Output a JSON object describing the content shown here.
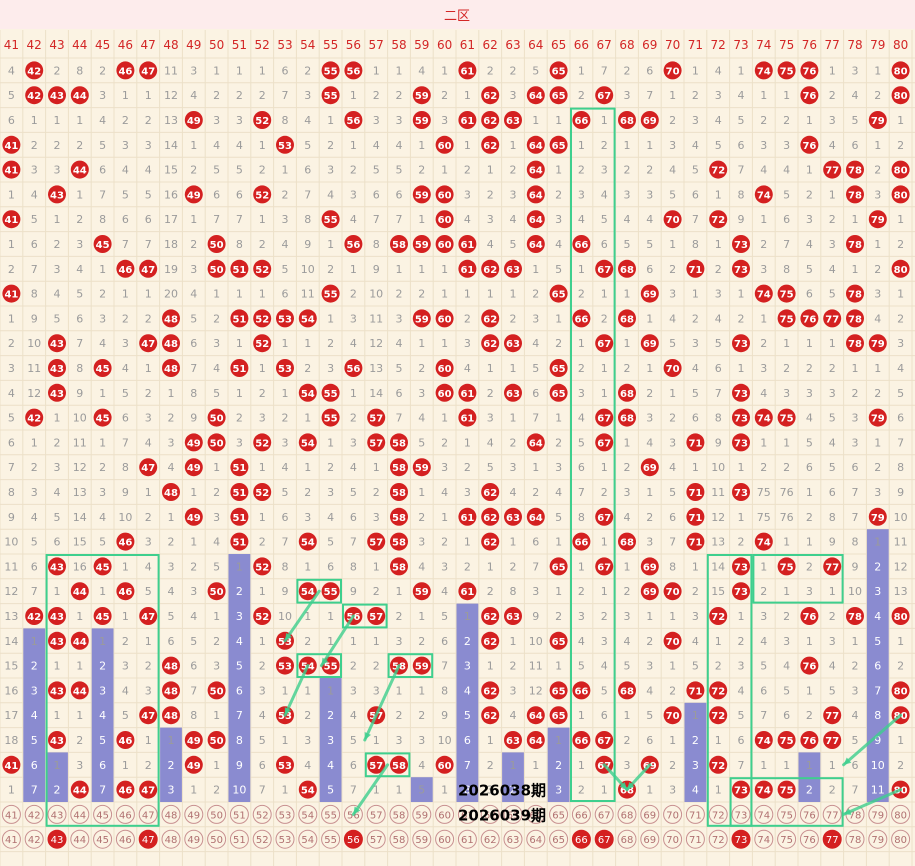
{
  "section_title": "二区",
  "colors": {
    "background": "#fbf3e3",
    "header_bg": "#fdecec",
    "title_text": "#d32626",
    "ball_red": "#d42020",
    "ball_text": "#ffffff",
    "miss_text": "#9b9b9b",
    "bar_fill": "#8a8bd0",
    "bar_text": "#ffffff",
    "connector": "#3ecf8e",
    "grid": "#ece0c8"
  },
  "chart_data": {
    "type": "table",
    "columns": [
      41,
      42,
      43,
      44,
      45,
      46,
      47,
      48,
      49,
      50,
      51,
      52,
      53,
      54,
      55,
      56,
      57,
      58,
      59,
      60,
      61,
      62,
      63,
      64,
      65,
      66,
      67,
      68,
      69,
      70,
      71,
      72,
      73,
      74,
      75,
      76,
      77,
      78,
      79,
      80
    ],
    "rows": [
      [
        4,
        42,
        2,
        8,
        2,
        46,
        47,
        11,
        3,
        1,
        1,
        1,
        6,
        2,
        55,
        56,
        1,
        1,
        4,
        1,
        61,
        2,
        2,
        5,
        65,
        1,
        7,
        2,
        6,
        70,
        1,
        4,
        1,
        74,
        75,
        76,
        1,
        3,
        1,
        80
      ],
      [
        5,
        42,
        43,
        44,
        3,
        1,
        1,
        12,
        4,
        2,
        2,
        2,
        7,
        3,
        55,
        1,
        2,
        2,
        59,
        2,
        1,
        62,
        3,
        64,
        65,
        2,
        67,
        3,
        7,
        1,
        2,
        3,
        4,
        1,
        1,
        76,
        2,
        4,
        2,
        80
      ],
      [
        6,
        1,
        1,
        1,
        4,
        2,
        2,
        13,
        49,
        3,
        3,
        52,
        8,
        4,
        1,
        56,
        3,
        3,
        59,
        3,
        61,
        62,
        63,
        1,
        1,
        66,
        1,
        68,
        69,
        2,
        3,
        4,
        5,
        2,
        2,
        1,
        3,
        5,
        79,
        1
      ],
      [
        41,
        2,
        2,
        2,
        5,
        3,
        3,
        14,
        1,
        4,
        4,
        1,
        53,
        5,
        2,
        1,
        4,
        4,
        1,
        60,
        1,
        62,
        1,
        64,
        65,
        1,
        2,
        1,
        1,
        3,
        4,
        5,
        6,
        3,
        3,
        76,
        4,
        6,
        1,
        2
      ],
      [
        41,
        3,
        3,
        44,
        6,
        4,
        4,
        15,
        2,
        5,
        5,
        2,
        1,
        6,
        3,
        2,
        5,
        5,
        2,
        1,
        2,
        1,
        2,
        64,
        1,
        2,
        3,
        2,
        2,
        4,
        5,
        72,
        7,
        4,
        4,
        1,
        77,
        78,
        2,
        80
      ],
      [
        1,
        4,
        43,
        1,
        7,
        5,
        5,
        16,
        49,
        6,
        6,
        52,
        2,
        7,
        4,
        3,
        6,
        6,
        59,
        60,
        3,
        2,
        3,
        64,
        2,
        3,
        4,
        3,
        3,
        5,
        6,
        1,
        8,
        74,
        5,
        2,
        1,
        78,
        3,
        80
      ],
      [
        41,
        5,
        1,
        2,
        8,
        6,
        6,
        17,
        1,
        7,
        7,
        1,
        3,
        8,
        55,
        4,
        7,
        7,
        1,
        60,
        4,
        3,
        4,
        64,
        3,
        4,
        5,
        4,
        4,
        70,
        7,
        72,
        9,
        1,
        6,
        3,
        2,
        1,
        79,
        1
      ],
      [
        1,
        6,
        2,
        3,
        45,
        7,
        7,
        18,
        2,
        50,
        8,
        2,
        4,
        9,
        1,
        56,
        8,
        58,
        59,
        60,
        61,
        4,
        5,
        64,
        4,
        66,
        6,
        5,
        5,
        1,
        8,
        1,
        73,
        2,
        7,
        4,
        3,
        78,
        1,
        2
      ],
      [
        2,
        7,
        3,
        4,
        1,
        46,
        47,
        19,
        3,
        50,
        51,
        52,
        5,
        10,
        2,
        1,
        9,
        1,
        1,
        1,
        61,
        62,
        63,
        1,
        5,
        1,
        67,
        68,
        6,
        2,
        71,
        2,
        73,
        3,
        8,
        5,
        4,
        1,
        2,
        80
      ],
      [
        41,
        8,
        4,
        5,
        2,
        1,
        1,
        20,
        4,
        1,
        1,
        1,
        6,
        11,
        55,
        2,
        10,
        2,
        2,
        1,
        1,
        1,
        1,
        2,
        65,
        2,
        1,
        1,
        69,
        3,
        1,
        3,
        1,
        74,
        75,
        6,
        5,
        78,
        3,
        1
      ],
      [
        1,
        9,
        5,
        6,
        3,
        2,
        2,
        48,
        5,
        2,
        51,
        52,
        53,
        54,
        1,
        3,
        11,
        3,
        59,
        60,
        2,
        62,
        2,
        3,
        1,
        66,
        2,
        68,
        1,
        4,
        2,
        4,
        2,
        1,
        75,
        76,
        77,
        78,
        4,
        2
      ],
      [
        2,
        10,
        43,
        7,
        4,
        3,
        47,
        48,
        6,
        3,
        1,
        52,
        1,
        1,
        2,
        4,
        12,
        4,
        1,
        1,
        3,
        62,
        63,
        4,
        2,
        1,
        67,
        1,
        69,
        5,
        3,
        5,
        73,
        2,
        1,
        1,
        1,
        78,
        79,
        3
      ],
      [
        3,
        11,
        43,
        8,
        45,
        4,
        1,
        48,
        7,
        4,
        51,
        1,
        53,
        2,
        3,
        56,
        13,
        5,
        2,
        60,
        4,
        1,
        1,
        5,
        65,
        2,
        1,
        2,
        1,
        70,
        4,
        6,
        1,
        3,
        2,
        2,
        2,
        1,
        1,
        4
      ],
      [
        4,
        12,
        43,
        9,
        1,
        5,
        2,
        1,
        8,
        5,
        1,
        2,
        1,
        54,
        55,
        1,
        14,
        6,
        3,
        60,
        61,
        2,
        63,
        6,
        65,
        3,
        1,
        68,
        2,
        1,
        5,
        7,
        73,
        4,
        3,
        3,
        3,
        2,
        2,
        5
      ],
      [
        5,
        42,
        1,
        10,
        45,
        6,
        3,
        2,
        9,
        50,
        2,
        3,
        2,
        1,
        55,
        2,
        57,
        7,
        4,
        1,
        61,
        3,
        1,
        7,
        1,
        4,
        67,
        68,
        3,
        2,
        6,
        8,
        73,
        74,
        75,
        4,
        5,
        3,
        79,
        6
      ],
      [
        6,
        1,
        2,
        11,
        1,
        7,
        4,
        3,
        49,
        50,
        3,
        52,
        3,
        54,
        1,
        3,
        57,
        58,
        5,
        2,
        1,
        4,
        2,
        64,
        2,
        5,
        67,
        1,
        4,
        3,
        71,
        9,
        73,
        1,
        1,
        5,
        4,
        3,
        1,
        7
      ],
      [
        7,
        2,
        3,
        12,
        2,
        8,
        47,
        4,
        49,
        1,
        51,
        1,
        4,
        1,
        2,
        4,
        1,
        58,
        59,
        3,
        2,
        5,
        3,
        1,
        3,
        6,
        1,
        2,
        69,
        4,
        1,
        10,
        1,
        2,
        2,
        6,
        5,
        6,
        2,
        8
      ],
      [
        8,
        3,
        4,
        13,
        3,
        9,
        1,
        48,
        1,
        2,
        51,
        52,
        5,
        2,
        3,
        5,
        2,
        58,
        1,
        4,
        3,
        62,
        4,
        2,
        4,
        7,
        2,
        3,
        1,
        5,
        71,
        11,
        73,
        75,
        76,
        1,
        6,
        7,
        3,
        9
      ],
      [
        9,
        4,
        5,
        14,
        4,
        10,
        2,
        1,
        49,
        3,
        51,
        1,
        6,
        3,
        4,
        6,
        3,
        58,
        2,
        1,
        61,
        62,
        63,
        64,
        5,
        8,
        67,
        4,
        2,
        6,
        71,
        12,
        1,
        75,
        76,
        2,
        8,
        7,
        79,
        10
      ],
      [
        10,
        5,
        6,
        15,
        5,
        46,
        3,
        2,
        1,
        4,
        51,
        2,
        7,
        54,
        5,
        7,
        57,
        58,
        3,
        2,
        1,
        62,
        1,
        6,
        1,
        66,
        1,
        68,
        3,
        7,
        71,
        13,
        2,
        74,
        1,
        1,
        9,
        8,
        1,
        11
      ],
      [
        11,
        6,
        43,
        16,
        45,
        1,
        4,
        3,
        2,
        5,
        1,
        52,
        8,
        1,
        6,
        8,
        1,
        58,
        4,
        3,
        2,
        1,
        2,
        7,
        65,
        1,
        67,
        1,
        69,
        8,
        1,
        14,
        73,
        1,
        75,
        2,
        77,
        9,
        2,
        12
      ],
      [
        12,
        7,
        1,
        44,
        1,
        46,
        5,
        4,
        3,
        50,
        2,
        1,
        9,
        54,
        55,
        9,
        2,
        1,
        59,
        4,
        61,
        2,
        8,
        3,
        1,
        2,
        1,
        2,
        69,
        70,
        2,
        15,
        73,
        2,
        1,
        3,
        1,
        10,
        3,
        13
      ],
      [
        13,
        42,
        43,
        1,
        45,
        1,
        47,
        5,
        4,
        1,
        3,
        52,
        10,
        1,
        1,
        56,
        57,
        2,
        1,
        5,
        1,
        62,
        63,
        9,
        2,
        3,
        2,
        3,
        1,
        1,
        3,
        72,
        1,
        3,
        2,
        76,
        2,
        78,
        4,
        80
      ],
      [
        14,
        1,
        43,
        44,
        1,
        2,
        1,
        6,
        5,
        2,
        4,
        1,
        53,
        2,
        1,
        1,
        1,
        3,
        2,
        6,
        2,
        62,
        1,
        10,
        65,
        4,
        3,
        4,
        2,
        70,
        4,
        1,
        2,
        4,
        3,
        1,
        3,
        1,
        5,
        1
      ],
      [
        15,
        2,
        1,
        1,
        2,
        3,
        2,
        48,
        6,
        3,
        5,
        2,
        53,
        54,
        55,
        2,
        2,
        58,
        59,
        7,
        3,
        1,
        2,
        11,
        1,
        5,
        4,
        5,
        3,
        1,
        5,
        2,
        3,
        5,
        4,
        76,
        4,
        2,
        6,
        2
      ],
      [
        16,
        3,
        43,
        44,
        3,
        4,
        3,
        48,
        7,
        50,
        6,
        3,
        1,
        1,
        1,
        3,
        3,
        1,
        1,
        8,
        4,
        62,
        3,
        12,
        65,
        66,
        5,
        68,
        4,
        2,
        71,
        72,
        4,
        6,
        5,
        1,
        5,
        3,
        7,
        80
      ],
      [
        17,
        4,
        1,
        1,
        4,
        5,
        47,
        48,
        8,
        1,
        7,
        4,
        53,
        2,
        2,
        4,
        57,
        2,
        2,
        9,
        5,
        62,
        4,
        64,
        65,
        1,
        6,
        1,
        5,
        70,
        1,
        72,
        5,
        7,
        6,
        2,
        77,
        4,
        8,
        80
      ],
      [
        18,
        5,
        43,
        2,
        5,
        46,
        1,
        1,
        49,
        50,
        8,
        5,
        1,
        3,
        3,
        5,
        1,
        3,
        3,
        10,
        6,
        1,
        63,
        64,
        1,
        66,
        67,
        2,
        6,
        1,
        2,
        1,
        6,
        74,
        75,
        76,
        77,
        5,
        9,
        1
      ],
      [
        41,
        6,
        1,
        3,
        6,
        1,
        2,
        2,
        49,
        1,
        9,
        6,
        53,
        4,
        4,
        6,
        57,
        58,
        4,
        60,
        7,
        2,
        1,
        1,
        2,
        1,
        67,
        3,
        69,
        2,
        3,
        72,
        7,
        1,
        1,
        1,
        1,
        6,
        10,
        2
      ],
      [
        1,
        7,
        2,
        44,
        7,
        46,
        47,
        3,
        1,
        2,
        10,
        7,
        1,
        54,
        5,
        7,
        1,
        1,
        5,
        1,
        8,
        3,
        2,
        2,
        3,
        2,
        1,
        68,
        1,
        3,
        4,
        1,
        73,
        74,
        75,
        2,
        2,
        7,
        11,
        80
      ],
      [
        41,
        42,
        43,
        44,
        45,
        46,
        47,
        48,
        49,
        50,
        51,
        52,
        53,
        54,
        55,
        56,
        57,
        58,
        59,
        60,
        61,
        62,
        63,
        64,
        65,
        66,
        67,
        68,
        69,
        70,
        71,
        72,
        73,
        74,
        75,
        76,
        77,
        78,
        79,
        80
      ],
      [
        41,
        42,
        43,
        44,
        45,
        46,
        47,
        48,
        49,
        50,
        51,
        52,
        53,
        54,
        55,
        56,
        57,
        58,
        59,
        60,
        61,
        62,
        63,
        64,
        65,
        66,
        67,
        68,
        69,
        70,
        71,
        72,
        73,
        74,
        75,
        76,
        77,
        78,
        79,
        80
      ]
    ],
    "highlight_last_row": [
      43,
      47,
      56,
      66,
      67,
      73,
      77
    ],
    "bars": [
      {
        "col": 42,
        "values": [
          1,
          2,
          3,
          4,
          5,
          6,
          7
        ]
      },
      {
        "col": 43,
        "values": [
          1,
          2
        ]
      },
      {
        "col": 45,
        "values": [
          1,
          2,
          3,
          4,
          5,
          6,
          7
        ]
      },
      {
        "col": 48,
        "values": [
          1,
          2,
          3
        ]
      },
      {
        "col": 51,
        "values": [
          1,
          2,
          3,
          4,
          5,
          6,
          7,
          8,
          9,
          10
        ]
      },
      {
        "col": 55,
        "values": [
          1,
          2,
          3,
          4,
          5
        ]
      },
      {
        "col": 59,
        "values": [
          1
        ]
      },
      {
        "col": 61,
        "values": [
          1,
          2,
          3,
          4,
          5,
          6,
          7,
          8
        ]
      },
      {
        "col": 63,
        "values": [
          1,
          2
        ]
      },
      {
        "col": 65,
        "values": [
          1,
          2,
          3
        ]
      },
      {
        "col": 71,
        "values": [
          1,
          2,
          3,
          4
        ]
      },
      {
        "col": 76,
        "values": [
          1,
          2
        ]
      },
      {
        "col": 79,
        "values": [
          1,
          2,
          3,
          4,
          5,
          6,
          7,
          8,
          9,
          10,
          11
        ]
      }
    ],
    "periods": [
      "2026038期",
      "2026039期"
    ],
    "boxes": [
      {
        "c1": 43,
        "c2": 47,
        "r1": 20,
        "r2": 30
      },
      {
        "c1": 54,
        "c2": 55,
        "r1": 21,
        "r2": 21
      },
      {
        "c1": 56,
        "c2": 57,
        "r1": 22,
        "r2": 22
      },
      {
        "c1": 54,
        "c2": 55,
        "r1": 24,
        "r2": 24
      },
      {
        "c1": 58,
        "c2": 59,
        "r1": 24,
        "r2": 24
      },
      {
        "c1": 57,
        "c2": 58,
        "r1": 28,
        "r2": 28
      },
      {
        "c1": 66,
        "c2": 67,
        "r1": 2,
        "r2": 29
      },
      {
        "c1": 72,
        "c2": 73,
        "r1": 20,
        "r2": 30
      },
      {
        "c1": 74,
        "c2": 77,
        "r1": 20,
        "r2": 21
      },
      {
        "c1": 73,
        "c2": 77,
        "r1": 29,
        "r2": 30
      }
    ],
    "arrows": [
      {
        "from": [
          54.5,
          21
        ],
        "to": [
          53,
          23
        ]
      },
      {
        "from": [
          56,
          22
        ],
        "to": [
          54.6,
          24
        ]
      },
      {
        "from": [
          54,
          24
        ],
        "to": [
          53,
          26
        ]
      },
      {
        "from": [
          58,
          24
        ],
        "to": [
          56.5,
          27
        ]
      },
      {
        "from": [
          57.5,
          28
        ],
        "to": [
          56,
          30
        ]
      },
      {
        "from": [
          67,
          28
        ],
        "to": [
          68,
          29
        ]
      },
      {
        "from": [
          69,
          28
        ],
        "to": [
          68,
          29
        ]
      },
      {
        "from": [
          80,
          26
        ],
        "to": [
          77.5,
          28
        ]
      },
      {
        "from": [
          80,
          29
        ],
        "to": [
          77.5,
          30
        ]
      }
    ]
  }
}
